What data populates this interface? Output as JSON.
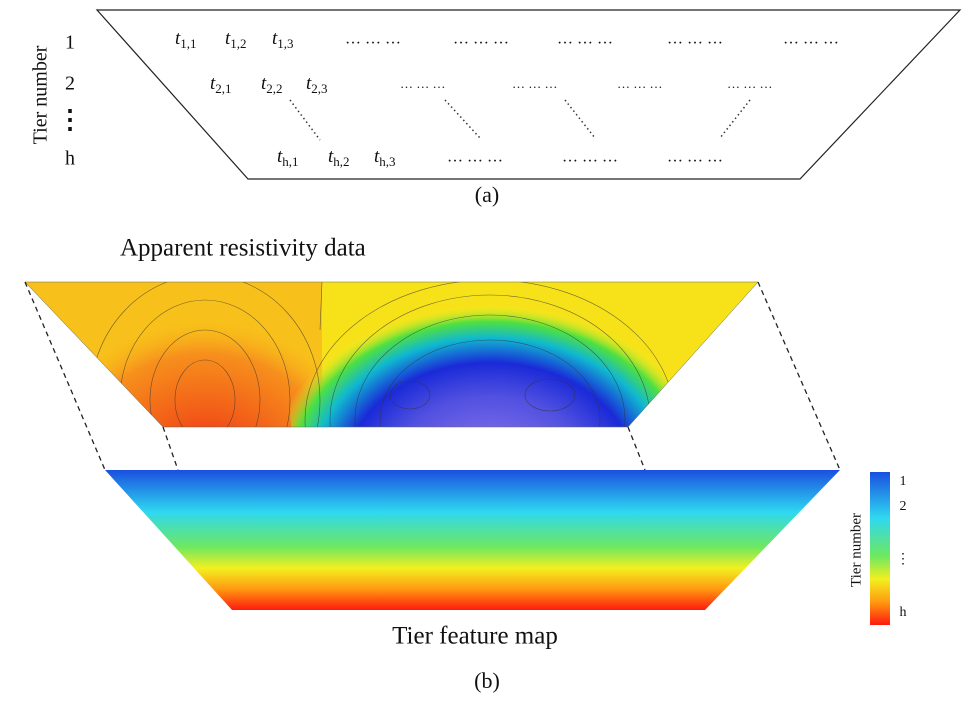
{
  "panel_a": {
    "axis_label": "Tier number",
    "tiers": [
      "1",
      "2",
      "⋮",
      "h"
    ],
    "rows": [
      {
        "terms": [
          {
            "base": "t",
            "sub": "1,1"
          },
          {
            "base": "t",
            "sub": "1,2"
          },
          {
            "base": "t",
            "sub": "1,3"
          }
        ],
        "ellipses": [
          "… … …",
          "… … …",
          "… … …",
          "… … …",
          "… … …"
        ]
      },
      {
        "terms": [
          {
            "base": "t",
            "sub": "2,1"
          },
          {
            "base": "t",
            "sub": "2,2"
          },
          {
            "base": "t",
            "sub": "2,3"
          }
        ],
        "ellipses": [
          "… … …",
          "… … …",
          "… … …",
          "… … …"
        ]
      },
      {
        "terms": [
          {
            "base": "t",
            "sub": "h,1"
          },
          {
            "base": "t",
            "sub": "h,2"
          },
          {
            "base": "t",
            "sub": "h,3"
          }
        ],
        "ellipses": [
          "… … …",
          "… … …",
          "… … …"
        ]
      }
    ],
    "caption": "(a)"
  },
  "panel_b": {
    "top_title": "Apparent resistivity data",
    "bottom_title": "Tier feature map",
    "colorbar": {
      "label": "Tier number",
      "ticks": [
        "1",
        "2",
        "⋮",
        "h"
      ]
    },
    "caption": "(b)"
  }
}
